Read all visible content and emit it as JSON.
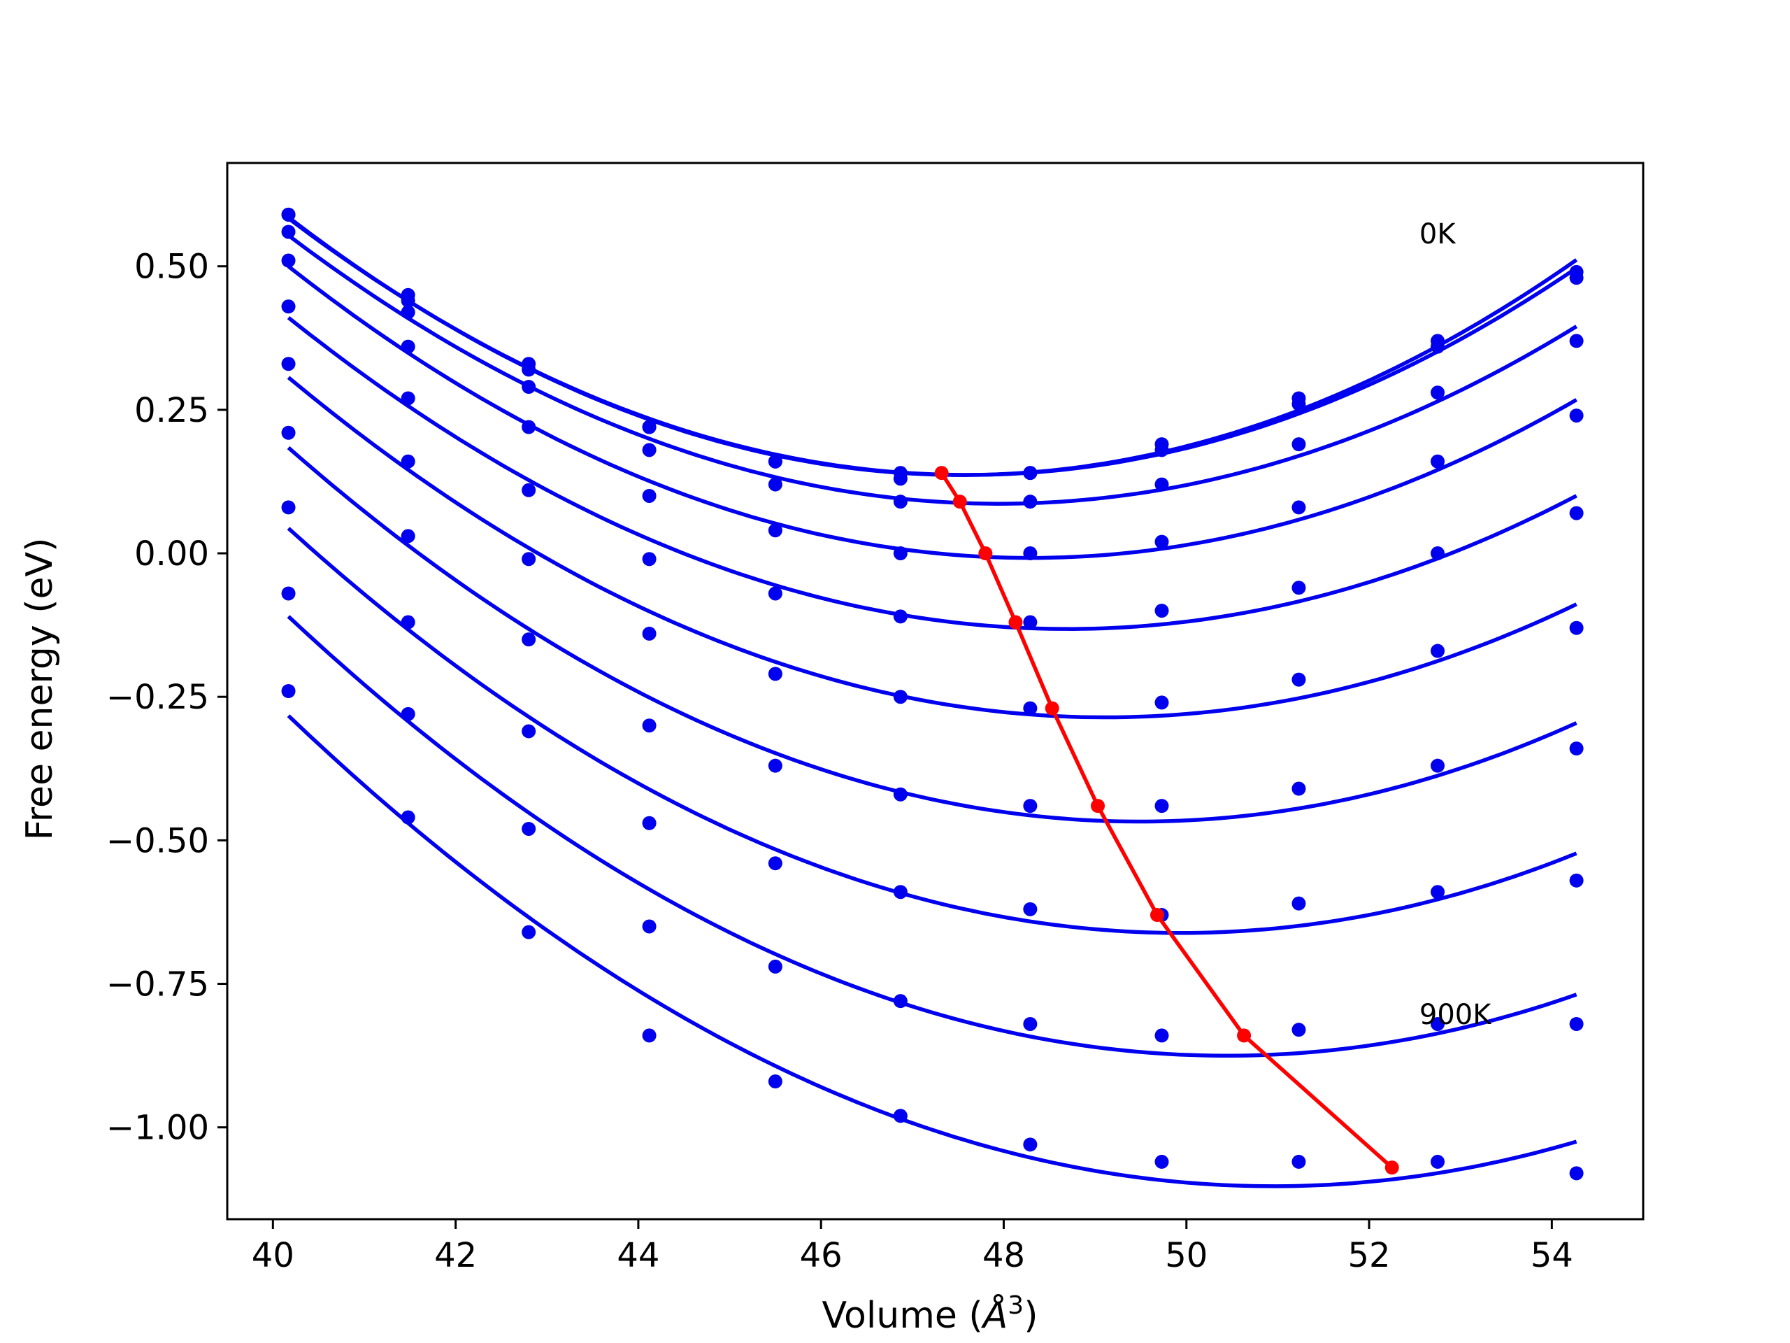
{
  "chart_data": {
    "type": "line",
    "xlabel": "Volume (Å³)",
    "xlabel_main": "Volume (",
    "xlabel_unit": "Å",
    "xlabel_sup": "3",
    "xlabel_close": ")",
    "ylabel": "Free energy (eV)",
    "xlim": [
      39.5,
      55.0
    ],
    "ylim": [
      -1.16,
      0.68
    ],
    "xticks": [
      40,
      42,
      44,
      46,
      48,
      50,
      52,
      54
    ],
    "xtick_labels": [
      "40",
      "42",
      "44",
      "46",
      "48",
      "50",
      "52",
      "54"
    ],
    "yticks": [
      -1.0,
      -0.75,
      -0.5,
      -0.25,
      0.0,
      0.25,
      0.5
    ],
    "ytick_labels": [
      "−1.00",
      "−0.75",
      "−0.50",
      "−0.25",
      "0.00",
      "0.25",
      "0.50"
    ],
    "grid": false,
    "annotations": [
      {
        "text": "0K",
        "x": 52.55,
        "y": 0.54
      },
      {
        "text": "900K",
        "x": 52.55,
        "y": -0.82
      }
    ],
    "volumes": [
      40.17,
      41.48,
      42.8,
      44.12,
      45.5,
      46.87,
      48.29,
      49.73,
      51.23,
      52.75,
      54.27
    ],
    "series": [
      {
        "values": [
          0.59,
          0.45,
          0.32,
          0.22,
          0.16,
          0.13,
          0.14,
          0.19,
          0.27,
          0.37,
          0.49
        ]
      },
      {
        "values": [
          0.59,
          0.44,
          0.33,
          0.22,
          0.16,
          0.14,
          0.14,
          0.18,
          0.26,
          0.36,
          0.48
        ]
      },
      {
        "values": [
          0.56,
          0.42,
          0.29,
          0.18,
          0.12,
          0.09,
          0.09,
          0.12,
          0.19,
          0.28,
          0.37
        ]
      },
      {
        "values": [
          0.51,
          0.36,
          0.22,
          0.1,
          0.04,
          0.0,
          0.0,
          0.02,
          0.08,
          0.16,
          0.24
        ]
      },
      {
        "values": [
          0.43,
          0.27,
          0.11,
          -0.01,
          -0.07,
          -0.11,
          -0.12,
          -0.1,
          -0.06,
          0.0,
          0.07
        ]
      },
      {
        "values": [
          0.33,
          0.16,
          -0.01,
          -0.14,
          -0.21,
          -0.25,
          -0.27,
          -0.26,
          -0.22,
          -0.17,
          -0.13
        ]
      },
      {
        "values": [
          0.21,
          0.03,
          -0.15,
          -0.3,
          -0.37,
          -0.42,
          -0.44,
          -0.44,
          -0.41,
          -0.37,
          -0.34
        ]
      },
      {
        "values": [
          0.08,
          -0.12,
          -0.31,
          -0.47,
          -0.54,
          -0.59,
          -0.62,
          -0.63,
          -0.61,
          -0.59,
          -0.57
        ]
      },
      {
        "values": [
          -0.07,
          -0.28,
          -0.48,
          -0.65,
          -0.72,
          -0.78,
          -0.82,
          -0.84,
          -0.83,
          -0.82,
          -0.82
        ]
      },
      {
        "values": [
          -0.24,
          -0.46,
          -0.66,
          -0.84,
          -0.92,
          -0.98,
          -1.03,
          -1.06,
          -1.06,
          -1.06,
          -1.08
        ]
      }
    ],
    "minima_line": {
      "x": [
        47.32,
        47.52,
        47.8,
        48.13,
        48.53,
        49.03,
        49.68,
        50.63,
        52.25
      ],
      "y": [
        0.14,
        0.09,
        0.0,
        -0.12,
        -0.27,
        -0.44,
        -0.63,
        -0.84,
        -1.07
      ]
    },
    "colors": {
      "fit": "#0000ee",
      "points": "#0000ee",
      "minima": "#ff0000",
      "axes": "#000000"
    }
  }
}
